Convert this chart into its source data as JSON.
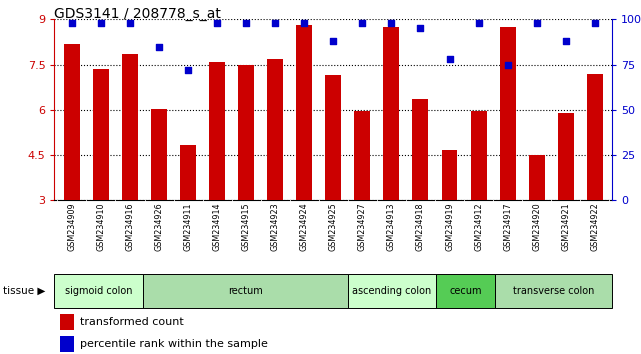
{
  "title": "GDS3141 / 208778_s_at",
  "samples": [
    "GSM234909",
    "GSM234910",
    "GSM234916",
    "GSM234926",
    "GSM234911",
    "GSM234914",
    "GSM234915",
    "GSM234923",
    "GSM234924",
    "GSM234925",
    "GSM234927",
    "GSM234913",
    "GSM234918",
    "GSM234919",
    "GSM234912",
    "GSM234917",
    "GSM234920",
    "GSM234921",
    "GSM234922"
  ],
  "bar_values": [
    8.2,
    7.35,
    7.85,
    6.02,
    4.82,
    7.6,
    7.5,
    7.68,
    8.8,
    7.15,
    5.95,
    8.75,
    6.35,
    4.65,
    5.95,
    8.75,
    4.5,
    5.9,
    7.2
  ],
  "dot_values": [
    98,
    98,
    98,
    85,
    72,
    98,
    98,
    98,
    98,
    88,
    98,
    98,
    95,
    78,
    98,
    75,
    98,
    88,
    98
  ],
  "bar_color": "#cc0000",
  "dot_color": "#0000cc",
  "ylim_left": [
    3,
    9
  ],
  "ylim_right": [
    0,
    100
  ],
  "yticks_left": [
    3,
    4.5,
    6,
    7.5,
    9
  ],
  "yticks_right": [
    0,
    25,
    50,
    75,
    100
  ],
  "ytick_labels_left": [
    "3",
    "4.5",
    "6",
    "7.5",
    "9"
  ],
  "ytick_labels_right": [
    "0",
    "25",
    "50",
    "75",
    "100%"
  ],
  "tissues": [
    {
      "label": "sigmoid colon",
      "start": 0,
      "end": 3,
      "color": "#ccffcc"
    },
    {
      "label": "rectum",
      "start": 3,
      "end": 10,
      "color": "#aaddaa"
    },
    {
      "label": "ascending colon",
      "start": 10,
      "end": 13,
      "color": "#ccffcc"
    },
    {
      "label": "cecum",
      "start": 13,
      "end": 15,
      "color": "#55cc55"
    },
    {
      "label": "transverse colon",
      "start": 15,
      "end": 19,
      "color": "#aaddaa"
    }
  ],
  "legend_bar": "transformed count",
  "legend_dot": "percentile rank within the sample",
  "gridline_color": "#888888",
  "xlabel_area_color": "#cccccc",
  "bar_width": 0.55
}
